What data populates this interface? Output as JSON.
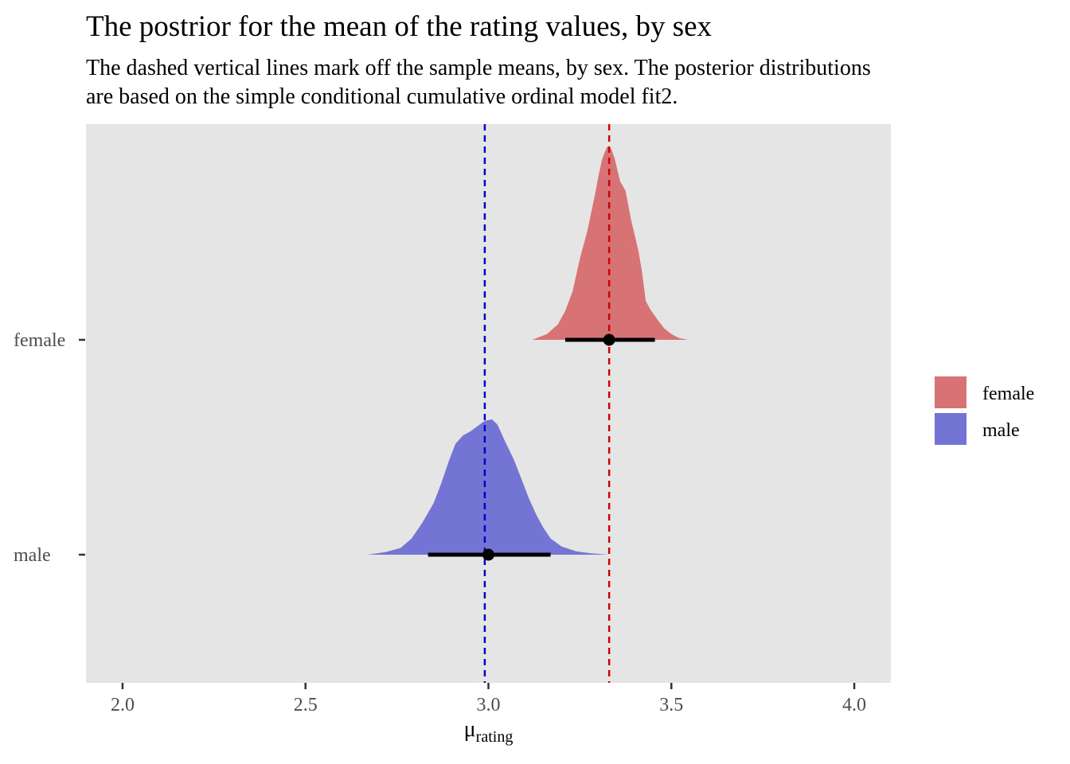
{
  "title": "The postrior for the mean of the rating values, by sex",
  "subtitle_line1": "The dashed vertical lines mark off the sample means, by sex. The posterior distributions",
  "subtitle_line2": "are based on the simple conditional cumulative ordinal model fit2.",
  "chart_data": {
    "type": "halfeye",
    "xlabel": "μ",
    "xlabel_subscript": "rating",
    "xlim": [
      1.9,
      4.1
    ],
    "x_ticks": [
      2.0,
      2.5,
      3.0,
      3.5,
      4.0
    ],
    "x_tick_labels": [
      "2.0",
      "2.5",
      "3.0",
      "3.5",
      "4.0"
    ],
    "categories": [
      "female",
      "male"
    ],
    "grid": false,
    "legend_position": "right",
    "series": [
      {
        "name": "female",
        "color": "#d77375",
        "median": 3.33,
        "interval": [
          3.21,
          3.455
        ],
        "sample_mean": 3.33,
        "sample_mean_color": "#cc0000",
        "density": [
          [
            3.12,
            0.0
          ],
          [
            3.16,
            0.03
          ],
          [
            3.19,
            0.08
          ],
          [
            3.21,
            0.15
          ],
          [
            3.23,
            0.25
          ],
          [
            3.25,
            0.42
          ],
          [
            3.27,
            0.56
          ],
          [
            3.29,
            0.74
          ],
          [
            3.3,
            0.84
          ],
          [
            3.31,
            0.93
          ],
          [
            3.32,
            0.98
          ],
          [
            3.325,
            1.0
          ],
          [
            3.335,
            0.99
          ],
          [
            3.345,
            0.94
          ],
          [
            3.36,
            0.82
          ],
          [
            3.375,
            0.77
          ],
          [
            3.39,
            0.62
          ],
          [
            3.41,
            0.46
          ],
          [
            3.42,
            0.35
          ],
          [
            3.43,
            0.2
          ],
          [
            3.445,
            0.15
          ],
          [
            3.46,
            0.11
          ],
          [
            3.48,
            0.06
          ],
          [
            3.5,
            0.03
          ],
          [
            3.52,
            0.01
          ],
          [
            3.545,
            0.0
          ]
        ]
      },
      {
        "name": "male",
        "color": "#7474d4",
        "median": 3.0,
        "interval": [
          2.835,
          3.17
        ],
        "sample_mean": 2.99,
        "sample_mean_color": "#0000cc",
        "density": [
          [
            2.67,
            0.0
          ],
          [
            2.72,
            0.02
          ],
          [
            2.76,
            0.05
          ],
          [
            2.79,
            0.12
          ],
          [
            2.82,
            0.24
          ],
          [
            2.85,
            0.38
          ],
          [
            2.87,
            0.52
          ],
          [
            2.89,
            0.68
          ],
          [
            2.91,
            0.82
          ],
          [
            2.93,
            0.88
          ],
          [
            2.95,
            0.91
          ],
          [
            2.97,
            0.95
          ],
          [
            2.99,
            0.99
          ],
          [
            3.01,
            1.0
          ],
          [
            3.025,
            0.96
          ],
          [
            3.045,
            0.84
          ],
          [
            3.07,
            0.7
          ],
          [
            3.09,
            0.56
          ],
          [
            3.11,
            0.42
          ],
          [
            3.13,
            0.3
          ],
          [
            3.15,
            0.2
          ],
          [
            3.17,
            0.12
          ],
          [
            3.2,
            0.06
          ],
          [
            3.24,
            0.025
          ],
          [
            3.28,
            0.01
          ],
          [
            3.33,
            0.0
          ]
        ]
      }
    ]
  }
}
